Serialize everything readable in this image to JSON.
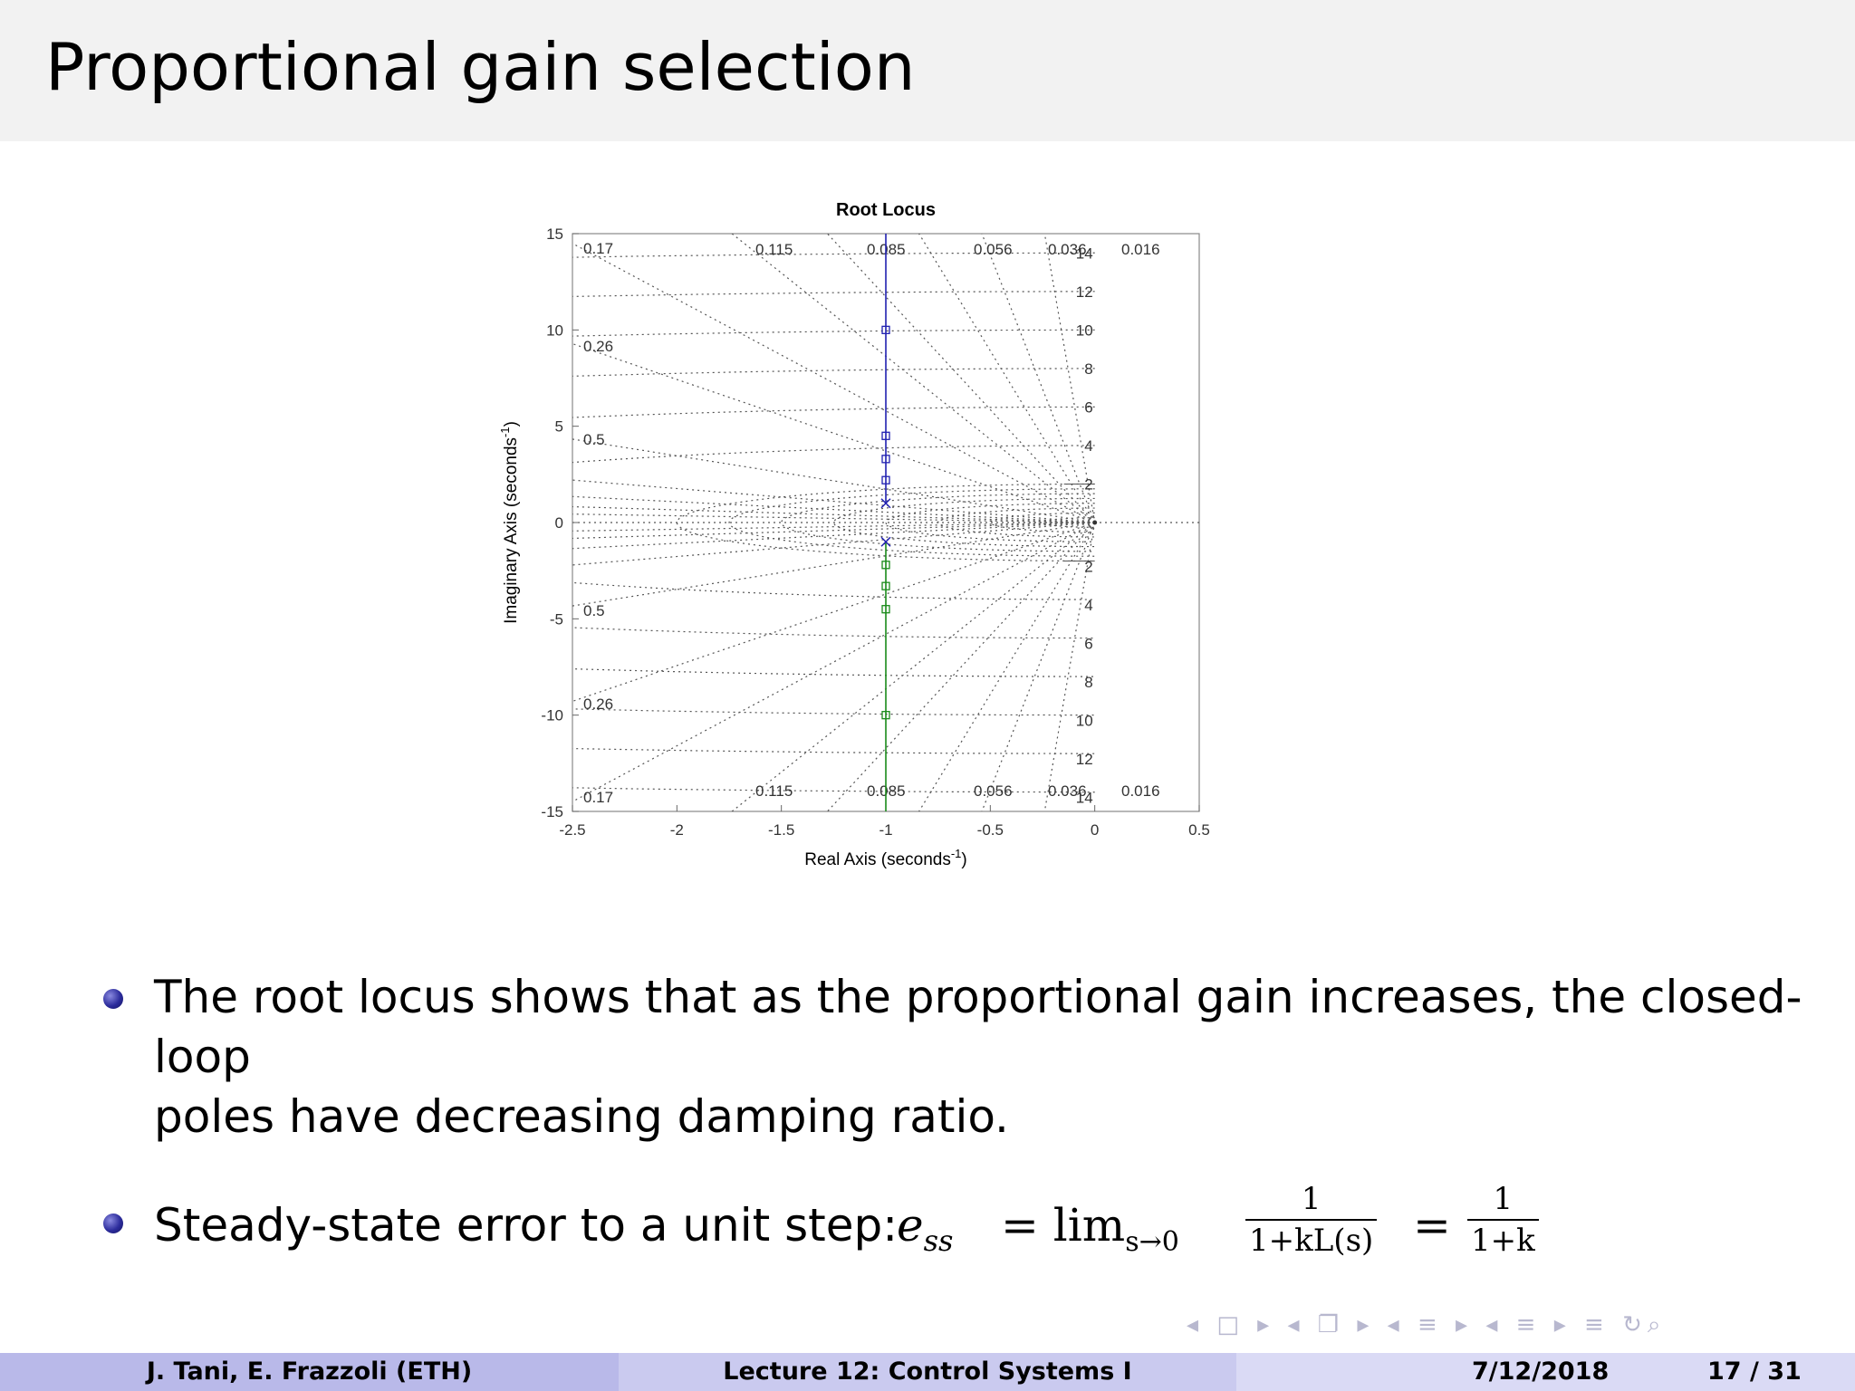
{
  "slide": {
    "title": "Proportional gain selection"
  },
  "chart_data": {
    "type": "root-locus",
    "title": "Root Locus",
    "xlabel": "Real Axis (seconds",
    "ylabel": "Imaginary Axis (seconds",
    "axis_label_exponent": "-1",
    "axis_label_close": ")",
    "xlim": [
      -2.5,
      0.5
    ],
    "ylim": [
      -15,
      15
    ],
    "xticks": [
      "-2.5",
      "-2",
      "-1.5",
      "-1",
      "-0.5",
      "0",
      "0.5"
    ],
    "yticks": [
      "15",
      "10",
      "5",
      "0",
      "-5",
      "-10",
      "-15"
    ],
    "damping_ratios": [
      "0.17",
      "0.26",
      "0.5",
      "0.115",
      "0.085",
      "0.056",
      "0.036",
      "0.016"
    ],
    "natural_frequencies": [
      "2",
      "4",
      "6",
      "8",
      "10",
      "12",
      "14"
    ],
    "grid": true,
    "colors": {
      "upper_branch": "#2020b0",
      "lower_branch": "#1a8a1a",
      "grid": "#555555"
    },
    "poles": [
      {
        "re": -1,
        "im": 1
      },
      {
        "re": -1,
        "im": -1
      }
    ],
    "series": [
      {
        "color": "#2020b0",
        "x": [
          -1,
          -1
        ],
        "y": [
          1,
          15
        ],
        "markers_y": [
          2.2,
          3.3,
          4.5,
          10
        ]
      },
      {
        "color": "#1a8a1a",
        "x": [
          -1,
          -1
        ],
        "y": [
          -1,
          -15
        ],
        "markers_y": [
          -2.2,
          -3.3,
          -4.5,
          -10
        ]
      }
    ]
  },
  "bullets": {
    "b1": "The root locus shows that as the proportional gain increases, the closed-loop",
    "b1_cont": "poles have decreasing damping ratio.",
    "b2_lead": "Steady-state error to a unit step:",
    "ess": "e",
    "ess_sub": "ss",
    "eq": "= lim",
    "lim_sub": "s→0",
    "frac1_num": "1",
    "frac1_den": "1+kL(s)",
    "eq2": "=",
    "frac2_num": "1",
    "frac2_den": "1+k"
  },
  "nav": {
    "symbols": "◂ □ ▸ ◂ ❐ ▸ ◂ ≡ ▸ ◂ ≡ ▸ ≡ ↻⌕"
  },
  "footer": {
    "authors": "J. Tani, E. Frazzoli (ETH)",
    "lecture": "Lecture 12: Control Systems I",
    "date": "7/12/2018",
    "page": "17 / 31"
  }
}
